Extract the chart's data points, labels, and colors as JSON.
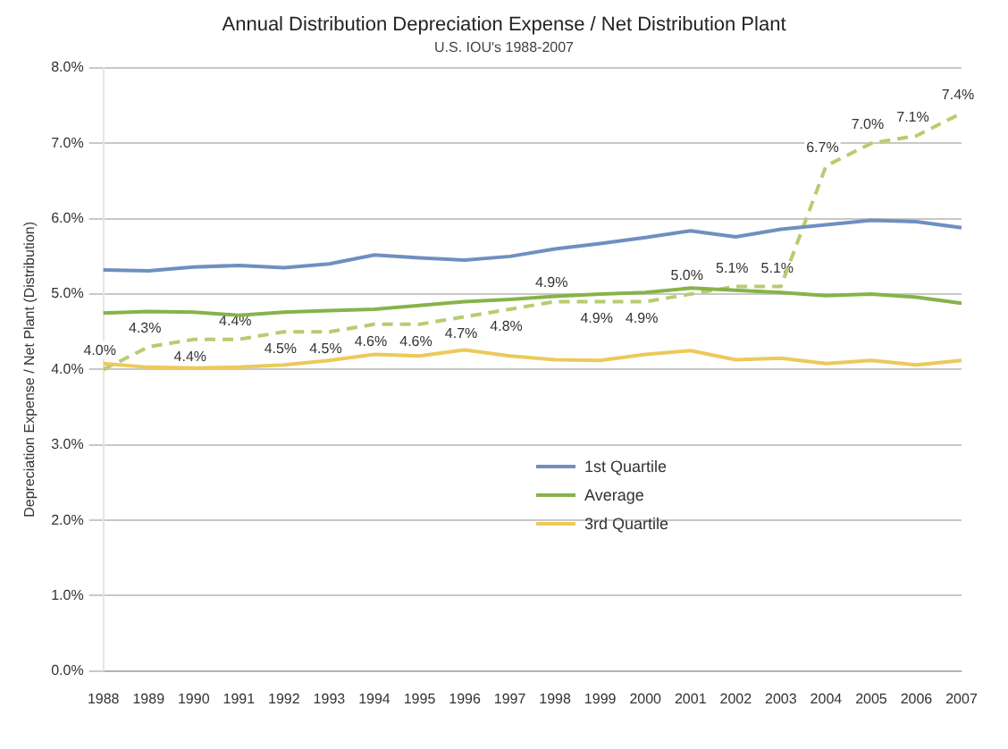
{
  "chart_data": {
    "type": "line",
    "title": "Annual Distribution Depreciation Expense / Net Distribution Plant",
    "subtitle": "U.S. IOU's 1988-2007",
    "ylabel": "Depreciation Expense / Net Plant (Distribution)",
    "categories": [
      "1988",
      "1989",
      "1990",
      "1991",
      "1992",
      "1993",
      "1994",
      "1995",
      "1996",
      "1997",
      "1998",
      "1999",
      "2000",
      "2001",
      "2002",
      "2003",
      "2004",
      "2005",
      "2006",
      "2007"
    ],
    "ylim": [
      0,
      8
    ],
    "yticks": [
      {
        "value": 0,
        "label": "0.0%"
      },
      {
        "value": 1,
        "label": "1.0%"
      },
      {
        "value": 2,
        "label": "2.0%"
      },
      {
        "value": 3,
        "label": "3.0%"
      },
      {
        "value": 4,
        "label": "4.0%"
      },
      {
        "value": 5,
        "label": "5.0%"
      },
      {
        "value": 6,
        "label": "6.0%"
      },
      {
        "value": 7,
        "label": "7.0%"
      },
      {
        "value": 8,
        "label": "8.0%"
      }
    ],
    "grid": "y",
    "legend": "center",
    "marker": "none",
    "series": [
      {
        "name": "1st Quartile",
        "color": "#6f8fbf",
        "values": [
          5.32,
          5.31,
          5.36,
          5.38,
          5.35,
          5.4,
          5.52,
          5.48,
          5.45,
          5.5,
          5.6,
          5.67,
          5.75,
          5.84,
          5.76,
          5.86,
          5.92,
          5.98,
          5.96,
          5.88
        ]
      },
      {
        "name": "Average",
        "color": "#86b34a",
        "values": [
          4.75,
          4.77,
          4.76,
          4.72,
          4.76,
          4.78,
          4.8,
          4.85,
          4.9,
          4.93,
          4.97,
          5.0,
          5.02,
          5.08,
          5.05,
          5.02,
          4.98,
          5.0,
          4.96,
          4.88
        ]
      },
      {
        "name": "3rd Quartile",
        "color": "#ecc95a",
        "values": [
          4.08,
          4.03,
          4.02,
          4.03,
          4.06,
          4.12,
          4.2,
          4.18,
          4.26,
          4.18,
          4.13,
          4.12,
          4.2,
          4.25,
          4.13,
          4.15,
          4.08,
          4.12,
          4.06,
          4.12
        ]
      },
      {
        "color": "#b8cc70",
        "line_style": "dashed",
        "values": [
          4.0,
          4.3,
          4.4,
          4.4,
          4.5,
          4.5,
          4.6,
          4.6,
          4.7,
          4.8,
          4.9,
          4.9,
          4.9,
          5.0,
          5.1,
          5.1,
          6.7,
          7.0,
          7.1,
          7.4
        ],
        "value_labels": [
          "4.0%",
          "4.3%",
          "4.4%",
          "4.4%",
          "4.5%",
          "4.5%",
          "4.6%",
          "4.6%",
          "4.7%",
          "4.8%",
          "4.9%",
          "4.9%",
          "4.9%",
          "5.0%",
          "5.1%",
          "5.1%",
          "6.7%",
          "7.0%",
          "7.1%",
          "7.4%"
        ]
      }
    ]
  }
}
